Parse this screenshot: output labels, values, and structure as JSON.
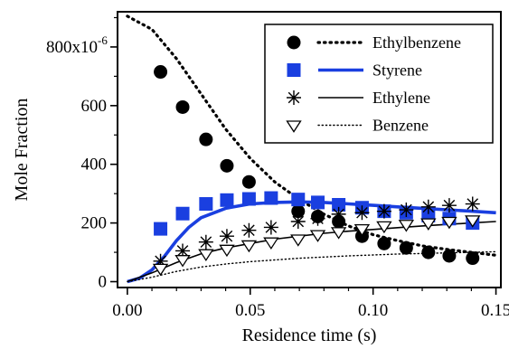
{
  "chart_data": {
    "type": "scatter",
    "xlabel": "Residence time (s)",
    "ylabel": "Mole Fraction",
    "xlim": [
      -0.004,
      0.152
    ],
    "ylim": [
      -20,
      920
    ],
    "x_ticks": [
      0.0,
      0.05,
      0.1,
      0.15
    ],
    "x_tick_labels": [
      "0.00",
      "0.05",
      "0.10",
      "0.15"
    ],
    "y_ticks": [
      0,
      200,
      400,
      600,
      800
    ],
    "y_tick_labels": [
      "0",
      "200",
      "400",
      "600",
      "800x10"
    ],
    "y_tick_exponent": "-6",
    "legend_position": "top-right",
    "grid": false,
    "series": [
      {
        "name": "Ethylbenzene",
        "color": "#000000",
        "marker": "filled-circle",
        "line": "dotted-thick",
        "points": [
          [
            0.0135,
            715
          ],
          [
            0.0225,
            595
          ],
          [
            0.032,
            485
          ],
          [
            0.0405,
            395
          ],
          [
            0.0495,
            340
          ],
          [
            0.0695,
            240
          ],
          [
            0.0775,
            222
          ],
          [
            0.086,
            205
          ],
          [
            0.0955,
            155
          ],
          [
            0.1045,
            130
          ],
          [
            0.1135,
            115
          ],
          [
            0.1225,
            100
          ],
          [
            0.131,
            88
          ],
          [
            0.1405,
            80
          ]
        ],
        "curve": [
          [
            0.0,
            905
          ],
          [
            0.01,
            860
          ],
          [
            0.02,
            760
          ],
          [
            0.03,
            640
          ],
          [
            0.04,
            520
          ],
          [
            0.05,
            420
          ],
          [
            0.06,
            340
          ],
          [
            0.07,
            280
          ],
          [
            0.08,
            230
          ],
          [
            0.09,
            190
          ],
          [
            0.1,
            160
          ],
          [
            0.11,
            140
          ],
          [
            0.12,
            122
          ],
          [
            0.13,
            110
          ],
          [
            0.14,
            100
          ],
          [
            0.15,
            90
          ]
        ]
      },
      {
        "name": "Styrene",
        "color": "#1a3fe0",
        "marker": "filled-square",
        "line": "solid-thick",
        "points": [
          [
            0.0135,
            180
          ],
          [
            0.0225,
            232
          ],
          [
            0.032,
            265
          ],
          [
            0.0405,
            278
          ],
          [
            0.0495,
            282
          ],
          [
            0.0585,
            285
          ],
          [
            0.0695,
            280
          ],
          [
            0.0775,
            270
          ],
          [
            0.086,
            262
          ],
          [
            0.0955,
            252
          ],
          [
            0.1045,
            240
          ],
          [
            0.1135,
            235
          ],
          [
            0.1225,
            225
          ],
          [
            0.131,
            215
          ],
          [
            0.1405,
            200
          ]
        ],
        "curve": [
          [
            0.0,
            0
          ],
          [
            0.005,
            12
          ],
          [
            0.01,
            40
          ],
          [
            0.015,
            85
          ],
          [
            0.02,
            140
          ],
          [
            0.025,
            185
          ],
          [
            0.03,
            218
          ],
          [
            0.04,
            250
          ],
          [
            0.05,
            265
          ],
          [
            0.06,
            270
          ],
          [
            0.07,
            272
          ],
          [
            0.08,
            270
          ],
          [
            0.09,
            265
          ],
          [
            0.1,
            260
          ],
          [
            0.11,
            255
          ],
          [
            0.12,
            250
          ],
          [
            0.13,
            245
          ],
          [
            0.14,
            240
          ],
          [
            0.15,
            235
          ]
        ]
      },
      {
        "name": "Ethylene",
        "color": "#000000",
        "marker": "asterisk",
        "line": "solid-thin",
        "points": [
          [
            0.0135,
            70
          ],
          [
            0.0225,
            105
          ],
          [
            0.032,
            135
          ],
          [
            0.0405,
            155
          ],
          [
            0.0495,
            175
          ],
          [
            0.0585,
            185
          ],
          [
            0.0695,
            205
          ],
          [
            0.0775,
            215
          ],
          [
            0.086,
            230
          ],
          [
            0.0955,
            235
          ],
          [
            0.1045,
            240
          ],
          [
            0.1135,
            245
          ],
          [
            0.1225,
            255
          ],
          [
            0.131,
            260
          ],
          [
            0.1405,
            265
          ]
        ],
        "curve": [
          [
            0.0,
            0
          ],
          [
            0.01,
            30
          ],
          [
            0.02,
            65
          ],
          [
            0.03,
            95
          ],
          [
            0.04,
            115
          ],
          [
            0.05,
            130
          ],
          [
            0.06,
            145
          ],
          [
            0.07,
            155
          ],
          [
            0.08,
            165
          ],
          [
            0.09,
            172
          ],
          [
            0.1,
            178
          ],
          [
            0.11,
            184
          ],
          [
            0.12,
            190
          ],
          [
            0.13,
            195
          ],
          [
            0.14,
            200
          ],
          [
            0.15,
            205
          ]
        ]
      },
      {
        "name": "Benzene",
        "color": "#000000",
        "marker": "open-triangle-down",
        "line": "dotted-thin",
        "points": [
          [
            0.0135,
            45
          ],
          [
            0.0225,
            75
          ],
          [
            0.032,
            95
          ],
          [
            0.0405,
            110
          ],
          [
            0.0495,
            125
          ],
          [
            0.0585,
            135
          ],
          [
            0.0695,
            145
          ],
          [
            0.0775,
            160
          ],
          [
            0.086,
            170
          ],
          [
            0.0955,
            180
          ],
          [
            0.1045,
            190
          ],
          [
            0.1135,
            195
          ],
          [
            0.1225,
            200
          ],
          [
            0.131,
            205
          ],
          [
            0.1405,
            210
          ]
        ],
        "curve": [
          [
            0.0,
            0
          ],
          [
            0.01,
            15
          ],
          [
            0.02,
            35
          ],
          [
            0.03,
            50
          ],
          [
            0.04,
            60
          ],
          [
            0.05,
            68
          ],
          [
            0.06,
            74
          ],
          [
            0.07,
            80
          ],
          [
            0.08,
            84
          ],
          [
            0.09,
            88
          ],
          [
            0.1,
            91
          ],
          [
            0.11,
            94
          ],
          [
            0.12,
            96
          ],
          [
            0.13,
            98
          ],
          [
            0.14,
            100
          ],
          [
            0.15,
            102
          ]
        ]
      }
    ]
  }
}
